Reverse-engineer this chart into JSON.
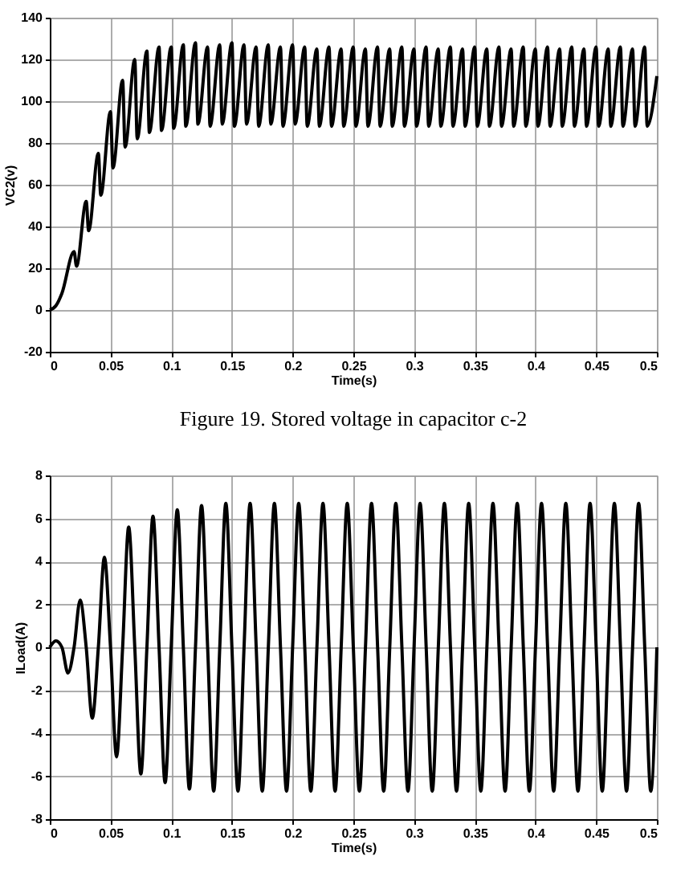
{
  "chart_data": [
    {
      "type": "line",
      "xlabel": "Time(s)",
      "ylabel": "VC2(v)",
      "annotations": [
        "Figure 19. Stored voltage in capacitor c-2"
      ],
      "grid": true,
      "xlim": [
        0,
        0.5
      ],
      "xticks": [
        0,
        0.05,
        0.1,
        0.15,
        0.2,
        0.25,
        0.3,
        0.35,
        0.4,
        0.45,
        0.5
      ],
      "ylim": [
        -20,
        140
      ],
      "yticks": [
        -20,
        0,
        20,
        40,
        60,
        80,
        100,
        120,
        140
      ],
      "x": [
        0,
        0.005,
        0.01,
        0.02,
        0.022,
        0.03,
        0.032,
        0.04,
        0.042,
        0.05,
        0.052,
        0.06,
        0.062,
        0.07,
        0.072,
        0.08,
        0.082,
        0.09,
        0.092,
        0.1,
        0.102,
        0.11,
        0.112,
        0.12,
        0.122,
        0.13,
        0.132,
        0.14,
        0.142,
        0.15,
        0.152,
        0.16,
        0.162,
        0.17,
        0.172,
        0.18,
        0.182,
        0.19,
        0.192,
        0.2,
        0.202,
        0.21,
        0.212,
        0.22,
        0.222,
        0.23,
        0.232,
        0.24,
        0.242,
        0.25,
        0.252,
        0.26,
        0.262,
        0.27,
        0.272,
        0.28,
        0.282,
        0.29,
        0.292,
        0.3,
        0.302,
        0.31,
        0.312,
        0.32,
        0.322,
        0.33,
        0.332,
        0.34,
        0.342,
        0.35,
        0.352,
        0.36,
        0.362,
        0.37,
        0.372,
        0.38,
        0.382,
        0.39,
        0.392,
        0.4,
        0.402,
        0.41,
        0.412,
        0.42,
        0.422,
        0.43,
        0.432,
        0.44,
        0.442,
        0.45,
        0.452,
        0.46,
        0.462,
        0.47,
        0.472,
        0.48,
        0.482,
        0.49,
        0.492,
        0.5
      ],
      "series": [
        {
          "color": "#000000",
          "values": [
            0,
            2,
            8,
            28,
            21,
            52,
            38,
            75,
            55,
            95,
            68,
            110,
            78,
            120,
            82,
            124,
            85,
            126,
            86,
            126,
            87,
            127,
            88,
            128,
            89,
            126,
            88,
            127,
            89,
            128,
            88,
            127,
            89,
            126,
            88,
            127,
            89,
            126,
            88,
            127,
            89,
            126,
            88,
            125,
            88,
            126,
            88,
            125,
            88,
            126,
            88,
            125,
            88,
            126,
            88,
            125,
            88,
            126,
            88,
            125,
            88,
            126,
            88,
            125,
            88,
            126,
            88,
            125,
            88,
            126,
            88,
            125,
            88,
            126,
            88,
            125,
            88,
            126,
            88,
            125,
            88,
            126,
            88,
            125,
            88,
            126,
            88,
            125,
            88,
            126,
            88,
            125,
            88,
            126,
            88,
            125,
            88,
            126,
            88,
            112
          ]
        }
      ]
    },
    {
      "type": "line",
      "xlabel": "Time(s)",
      "ylabel": "ILoad(A)",
      "grid": true,
      "xlim": [
        0,
        0.5
      ],
      "xticks": [
        0,
        0.05,
        0.1,
        0.15,
        0.2,
        0.25,
        0.3,
        0.35,
        0.4,
        0.45,
        0.5
      ],
      "ylim": [
        -8,
        8
      ],
      "yticks": [
        -8,
        -6,
        -4,
        -2,
        0,
        2,
        4,
        6,
        8
      ],
      "x": [
        0,
        0.005,
        0.01,
        0.015,
        0.02,
        0.025,
        0.03,
        0.035,
        0.04,
        0.045,
        0.05,
        0.055,
        0.06,
        0.065,
        0.07,
        0.075,
        0.08,
        0.085,
        0.09,
        0.095,
        0.1,
        0.105,
        0.11,
        0.115,
        0.12,
        0.125,
        0.13,
        0.135,
        0.14,
        0.145,
        0.15,
        0.155,
        0.16,
        0.165,
        0.17,
        0.175,
        0.18,
        0.185,
        0.19,
        0.195,
        0.2,
        0.205,
        0.21,
        0.215,
        0.22,
        0.225,
        0.23,
        0.235,
        0.24,
        0.245,
        0.25,
        0.255,
        0.26,
        0.265,
        0.27,
        0.275,
        0.28,
        0.285,
        0.29,
        0.295,
        0.3,
        0.305,
        0.31,
        0.315,
        0.32,
        0.325,
        0.33,
        0.335,
        0.34,
        0.345,
        0.35,
        0.355,
        0.36,
        0.365,
        0.37,
        0.375,
        0.38,
        0.385,
        0.39,
        0.395,
        0.4,
        0.405,
        0.41,
        0.415,
        0.42,
        0.425,
        0.43,
        0.435,
        0.44,
        0.445,
        0.45,
        0.455,
        0.46,
        0.465,
        0.47,
        0.475,
        0.48,
        0.485,
        0.49,
        0.495,
        0.5
      ],
      "series": [
        {
          "color": "#000000",
          "values": [
            0,
            0.3,
            0,
            -1.2,
            0,
            2.2,
            0,
            -3.3,
            0,
            4.2,
            0,
            -5.1,
            0,
            5.6,
            0,
            -5.9,
            0,
            6.1,
            0,
            -6.3,
            0,
            6.4,
            0,
            -6.6,
            0,
            6.6,
            0,
            -6.7,
            0,
            6.7,
            0,
            -6.7,
            0,
            6.7,
            0,
            -6.7,
            0,
            6.7,
            0,
            -6.7,
            0,
            6.7,
            0,
            -6.7,
            0,
            6.7,
            0,
            -6.7,
            0,
            6.7,
            0,
            -6.7,
            0,
            6.7,
            0,
            -6.7,
            0,
            6.7,
            0,
            -6.7,
            0,
            6.7,
            0,
            -6.7,
            0,
            6.7,
            0,
            -6.7,
            0,
            6.7,
            0,
            -6.7,
            0,
            6.7,
            0,
            -6.7,
            0,
            6.7,
            0,
            -6.7,
            0,
            6.7,
            0,
            -6.7,
            0,
            6.7,
            0,
            -6.7,
            0,
            6.7,
            0,
            -6.7,
            0,
            6.7,
            0,
            -6.7,
            0,
            6.7,
            0,
            -6.7,
            0
          ]
        }
      ]
    }
  ]
}
